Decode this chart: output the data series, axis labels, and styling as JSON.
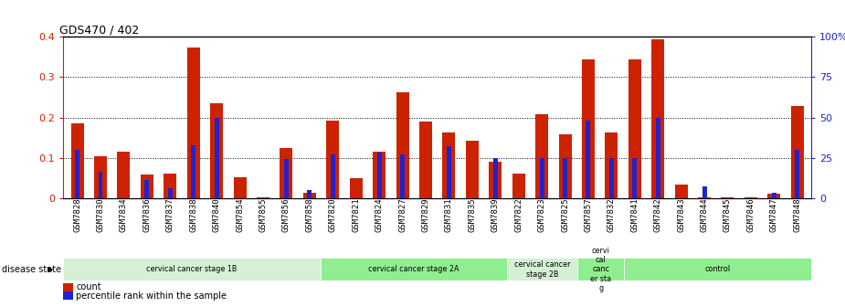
{
  "title": "GDS470 / 402",
  "samples": [
    "GSM7828",
    "GSM7830",
    "GSM7834",
    "GSM7836",
    "GSM7837",
    "GSM7838",
    "GSM7840",
    "GSM7854",
    "GSM7855",
    "GSM7856",
    "GSM7858",
    "GSM7820",
    "GSM7821",
    "GSM7824",
    "GSM7827",
    "GSM7829",
    "GSM7831",
    "GSM7835",
    "GSM7839",
    "GSM7822",
    "GSM7823",
    "GSM7825",
    "GSM7857",
    "GSM7832",
    "GSM7841",
    "GSM7842",
    "GSM7843",
    "GSM7844",
    "GSM7845",
    "GSM7846",
    "GSM7847",
    "GSM7848"
  ],
  "count": [
    0.185,
    0.103,
    0.115,
    0.058,
    0.06,
    0.373,
    0.235,
    0.052,
    0.002,
    0.125,
    0.012,
    0.193,
    0.05,
    0.115,
    0.262,
    0.19,
    0.162,
    0.143,
    0.09,
    0.06,
    0.207,
    0.158,
    0.345,
    0.162,
    0.345,
    0.395,
    0.033,
    0.002,
    0.002,
    0.002,
    0.01,
    0.228
  ],
  "percentile_pct": [
    30,
    16,
    0,
    11,
    6,
    33,
    50,
    0,
    0,
    24,
    5,
    27,
    0,
    28,
    27,
    0,
    32,
    0,
    25,
    0,
    25,
    25,
    48,
    25,
    25,
    50,
    0,
    7,
    0,
    0,
    3,
    30
  ],
  "groups": [
    {
      "label": "cervical cancer stage 1B",
      "start": 0,
      "end": 10,
      "color": "#d5f0d5"
    },
    {
      "label": "cervical cancer stage 2A",
      "start": 11,
      "end": 18,
      "color": "#90ee90"
    },
    {
      "label": "cervical cancer\nstage 2B",
      "start": 19,
      "end": 21,
      "color": "#d5f0d5"
    },
    {
      "label": "cervi\ncal\ncanc\ner sta\ng",
      "start": 22,
      "end": 23,
      "color": "#90ee90"
    },
    {
      "label": "control",
      "start": 24,
      "end": 31,
      "color": "#90ee90"
    }
  ],
  "bar_color": "#cc2200",
  "percentile_color": "#2222cc",
  "ylim_left": [
    0,
    0.4
  ],
  "ylim_right": [
    0,
    100
  ],
  "yticks_left": [
    0.0,
    0.1,
    0.2,
    0.3,
    0.4
  ],
  "yticks_right": [
    0,
    25,
    50,
    75,
    100
  ],
  "ytick_labels_left": [
    "0",
    "0.1",
    "0.2",
    "0.3",
    "0.4"
  ],
  "ytick_labels_right": [
    "0",
    "25",
    "50",
    "75",
    "100%"
  ]
}
